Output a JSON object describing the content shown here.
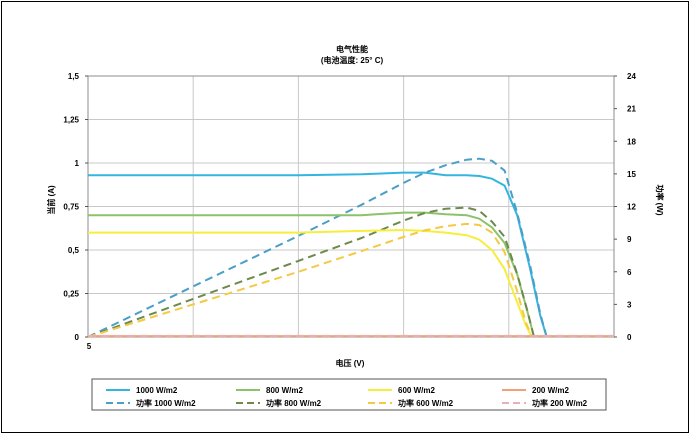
{
  "chart_data": {
    "type": "line",
    "title": "电气性能",
    "subtitle": "(电池温度: 25° C)",
    "xlabel": "电压 (V)",
    "ylabel": "当前 (A)",
    "y2label": "功率 (W)",
    "x_tick_labels": [
      "5"
    ],
    "xlim": [
      0,
      25
    ],
    "ylim": [
      0,
      1.5
    ],
    "y2lim": [
      0,
      24
    ],
    "y_ticks": [
      0,
      0.25,
      0.5,
      0.75,
      1,
      1.25,
      1.5
    ],
    "y_tick_labels": [
      "0",
      "0,25",
      "0,5",
      "0,75",
      "1",
      "1,25",
      "1,5"
    ],
    "y2_ticks": [
      0,
      3,
      6,
      9,
      12,
      15,
      18,
      21,
      24
    ],
    "y2_tick_labels": [
      "0",
      "3",
      "6",
      "9",
      "12",
      "15",
      "18",
      "21",
      "24"
    ],
    "grid": true,
    "legend_position": "bottom",
    "series": [
      {
        "name": "1000 W/m2",
        "axis": "left",
        "style": "solid",
        "color": "#33b5e0",
        "x": [
          0,
          5,
          10,
          13,
          15,
          16,
          17,
          18,
          18.6,
          19.2,
          19.8,
          20.4,
          21,
          21.5,
          21.8
        ],
        "y": [
          0.93,
          0.93,
          0.93,
          0.935,
          0.945,
          0.945,
          0.93,
          0.93,
          0.925,
          0.91,
          0.87,
          0.7,
          0.4,
          0.12,
          0
        ]
      },
      {
        "name": "功率 1000 W/m2",
        "axis": "right",
        "style": "dashed",
        "color": "#4a9ec8",
        "x": [
          0,
          5,
          10,
          13,
          15,
          16,
          17,
          18,
          18.6,
          19.2,
          19.8,
          20.4,
          21,
          21.5,
          21.8
        ],
        "y": [
          0,
          4.65,
          9.3,
          12.16,
          14.17,
          15.1,
          15.8,
          16.3,
          16.4,
          16.2,
          15.3,
          11.4,
          6.7,
          2.1,
          0
        ]
      },
      {
        "name": "800 W/m2",
        "axis": "left",
        "style": "solid",
        "color": "#8cc26a",
        "x": [
          0,
          5,
          10,
          13,
          15,
          16,
          17,
          18,
          18.6,
          19.2,
          19.8,
          20.4,
          20.9,
          21.2
        ],
        "y": [
          0.7,
          0.7,
          0.7,
          0.7,
          0.715,
          0.715,
          0.705,
          0.7,
          0.68,
          0.63,
          0.54,
          0.36,
          0.14,
          0
        ]
      },
      {
        "name": "功率 800 W/m2",
        "axis": "right",
        "style": "dashed",
        "color": "#6d8a4d",
        "x": [
          0,
          5,
          10,
          13,
          15,
          16,
          17,
          18,
          18.6,
          19.2,
          19.8,
          20.4,
          20.9,
          21.2
        ],
        "y": [
          0,
          3.5,
          7,
          9.1,
          10.7,
          11.4,
          11.8,
          11.9,
          11.6,
          10.6,
          9.2,
          5.8,
          2.3,
          0
        ]
      },
      {
        "name": "600 W/m2",
        "axis": "left",
        "style": "solid",
        "color": "#f5ee3a",
        "x": [
          0,
          5,
          10,
          13,
          15,
          16,
          17,
          18,
          18.6,
          19.2,
          19.8,
          20.4,
          20.8,
          21.1
        ],
        "y": [
          0.6,
          0.6,
          0.6,
          0.61,
          0.615,
          0.61,
          0.6,
          0.585,
          0.56,
          0.5,
          0.39,
          0.2,
          0.07,
          0
        ]
      },
      {
        "name": "功率 600 W/m2",
        "axis": "right",
        "style": "dashed",
        "color": "#f5c845",
        "x": [
          0,
          5,
          10,
          13,
          15,
          16,
          17,
          18,
          18.6,
          19.2,
          19.8,
          20.4,
          20.8,
          21.1
        ],
        "y": [
          0,
          3,
          6,
          7.9,
          9.2,
          9.8,
          10.2,
          10.4,
          10.3,
          9.6,
          7.8,
          4.2,
          1.4,
          0
        ]
      },
      {
        "name": "200 W/m2",
        "axis": "left",
        "style": "solid",
        "color": "#f2a07a",
        "x": [
          0,
          25
        ],
        "y": [
          0.005,
          0.005
        ]
      },
      {
        "name": "功率 200 W/m2",
        "axis": "right",
        "style": "dashed",
        "color": "#e8b0b0",
        "x": [
          0,
          25
        ],
        "y": [
          0.1,
          0.1
        ]
      }
    ]
  }
}
